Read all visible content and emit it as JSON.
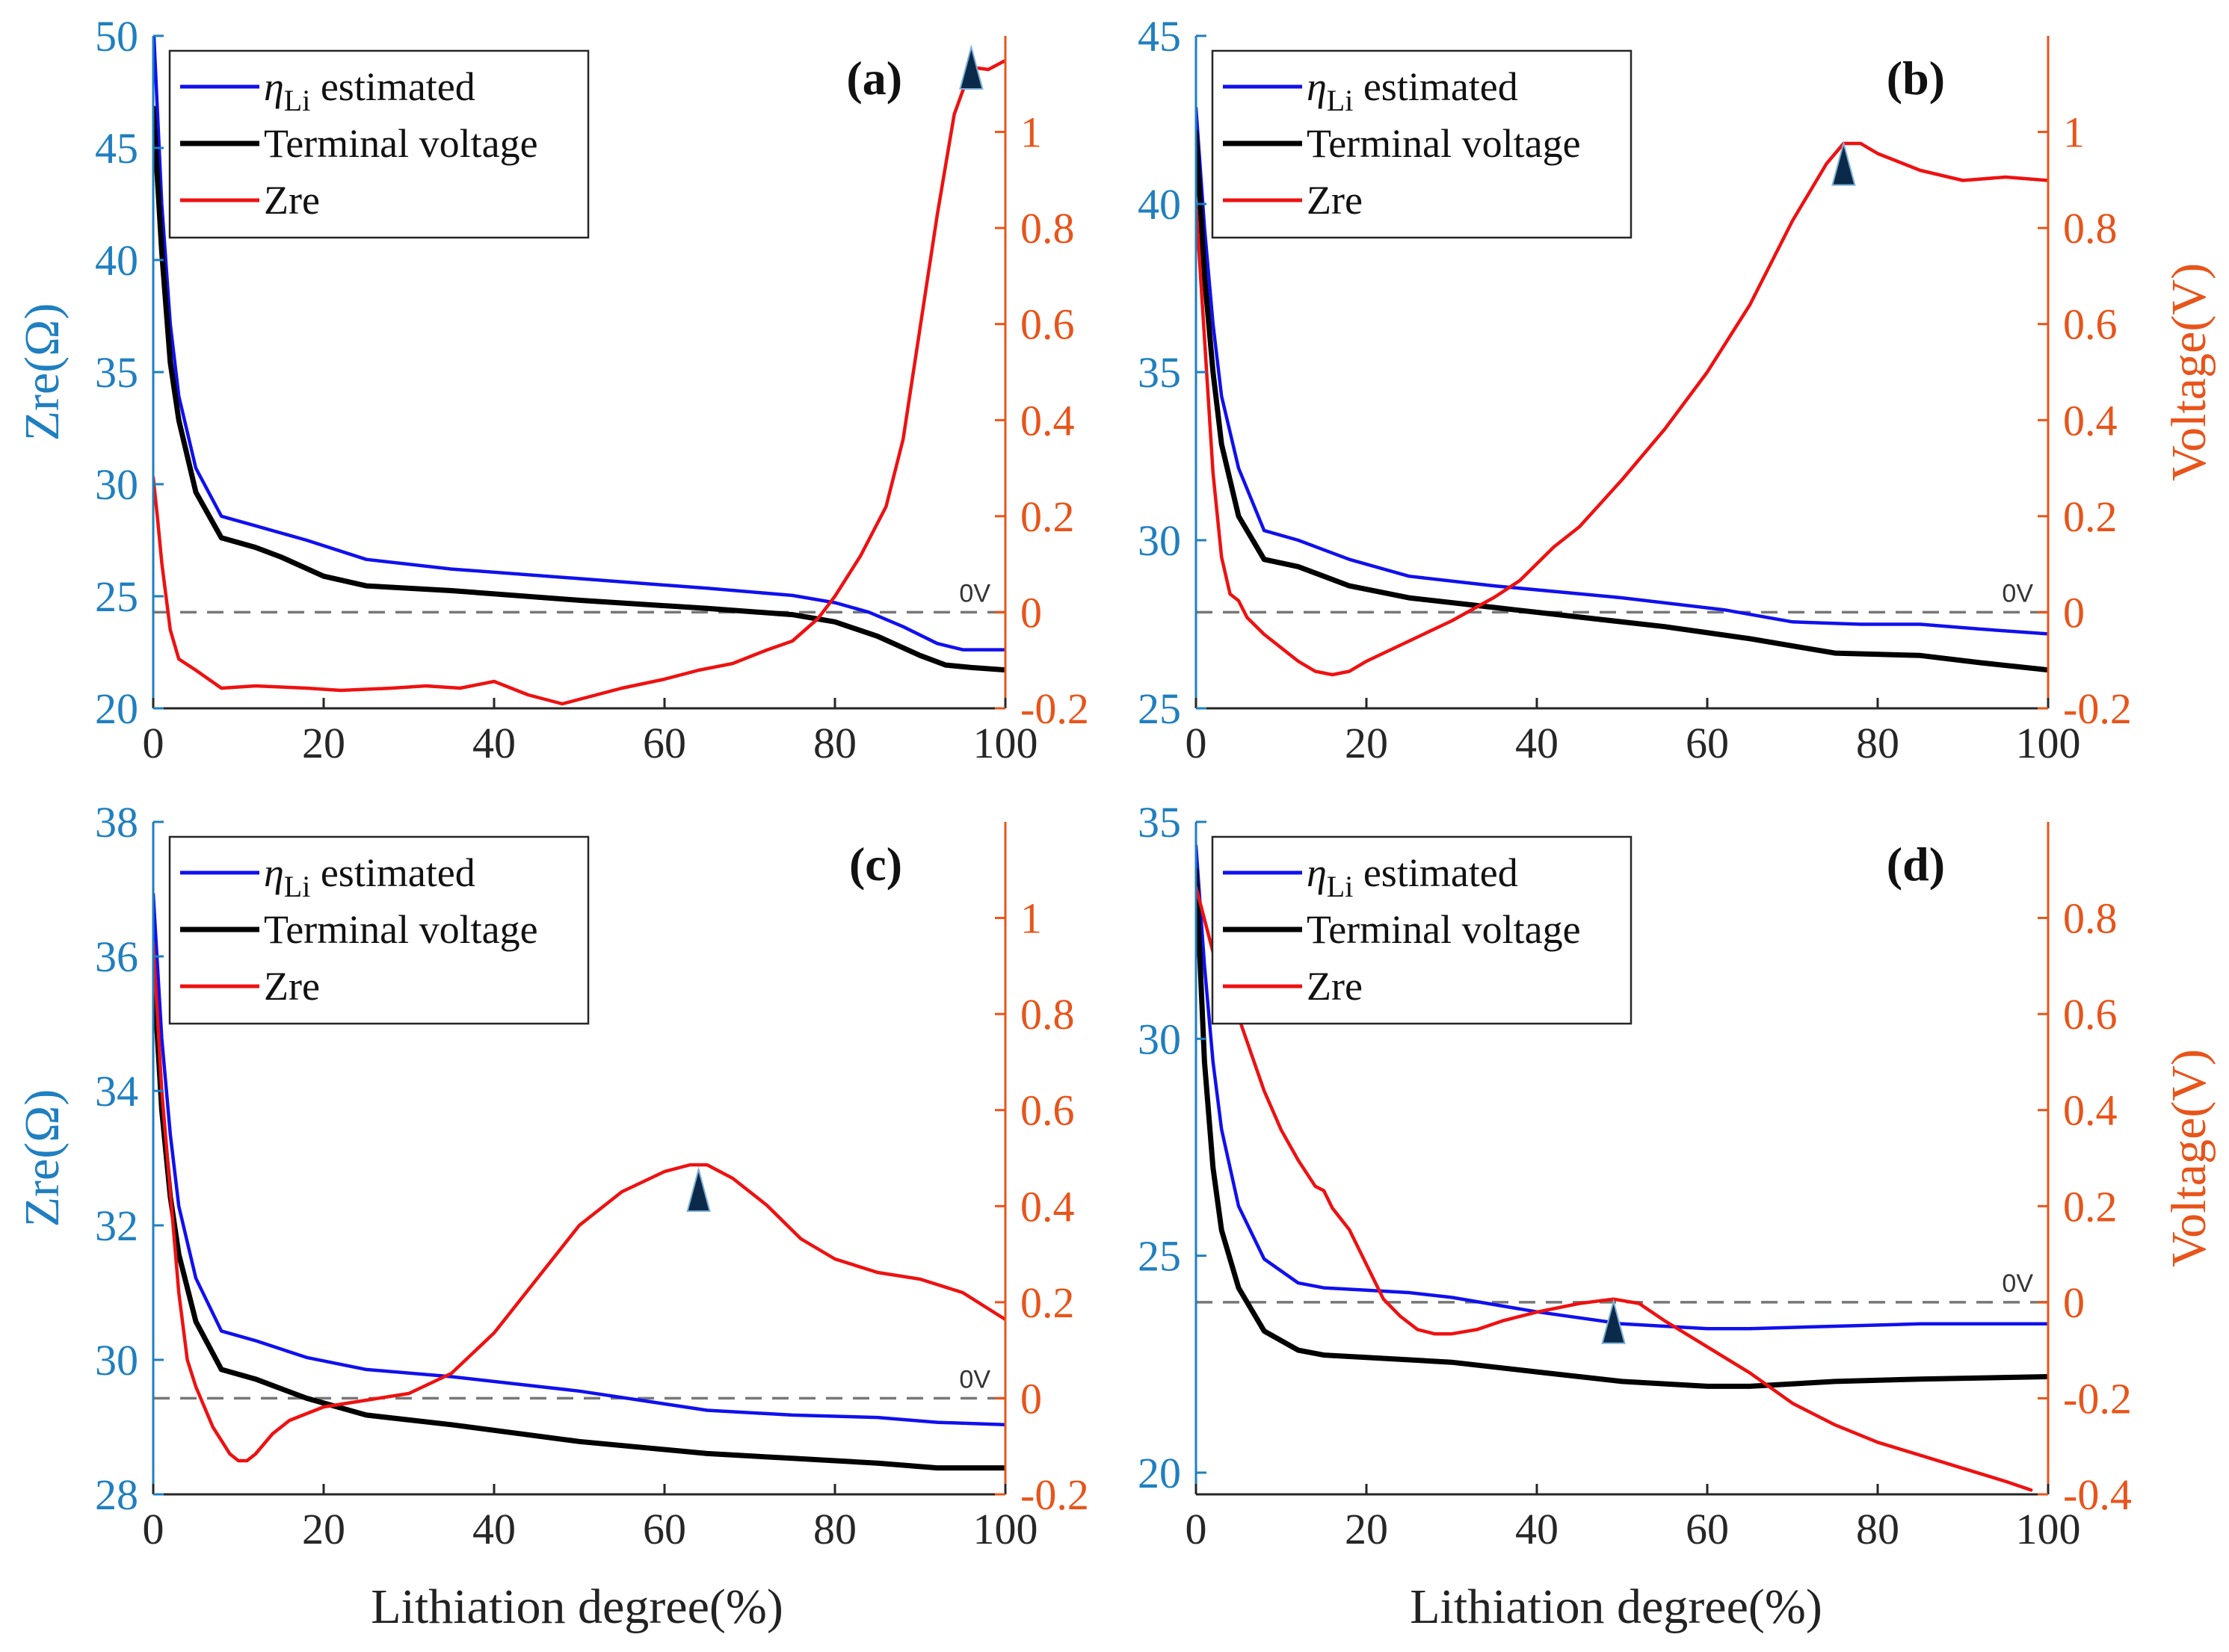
{
  "figure": {
    "shared_xlabel": "Lithiation degree(%)",
    "colors": {
      "eta": "#1010ee",
      "terminal": "#000000",
      "zre": "#ee1111",
      "left_axis": "#1f7fc0",
      "right_axis": "#e8541a",
      "zero_line": "#777777",
      "marker": "#0b2a4a"
    }
  },
  "chart_data": [
    {
      "type": "line",
      "panel_label": "(a)",
      "xlabel": "Lithiation degree(%)",
      "ylabel_left": "Zre(Ω)",
      "ylabel_right": "",
      "xlim": [
        0,
        100
      ],
      "xticks": [
        "0",
        "20",
        "40",
        "60",
        "80",
        "100"
      ],
      "ylim_left": [
        20,
        50
      ],
      "yticks_left": [
        "20",
        "25",
        "30",
        "35",
        "40",
        "45",
        "50"
      ],
      "ylim_right": [
        -0.2,
        1.2
      ],
      "yticks_right": [
        "-0.2",
        "0",
        "0.2",
        "0.4",
        "0.6",
        "0.8",
        "1"
      ],
      "zero_label": "0V",
      "legend": [
        "η_Li estimated",
        "Terminal voltage",
        "Zre"
      ],
      "legend_parts": {
        "eta_symbol": "η",
        "eta_sub": "Li",
        "eta_rest": " estimated",
        "terminal": "Terminal voltage",
        "zre": "Zre"
      },
      "marker": {
        "x": 96,
        "y": 1.13
      },
      "series": [
        {
          "name": "η_Li estimated",
          "axis": "right",
          "x": [
            0,
            1,
            2,
            3,
            5,
            8,
            12,
            18,
            25,
            35,
            50,
            65,
            75,
            80,
            84,
            88,
            92,
            95,
            100
          ],
          "y": [
            1.23,
            0.85,
            0.6,
            0.45,
            0.3,
            0.2,
            0.18,
            0.15,
            0.11,
            0.09,
            0.07,
            0.05,
            0.035,
            0.02,
            0.0,
            -0.03,
            -0.065,
            -0.078,
            -0.078
          ]
        },
        {
          "name": "Terminal voltage",
          "axis": "right",
          "x": [
            0,
            1,
            2,
            3,
            5,
            8,
            12,
            15,
            20,
            25,
            35,
            50,
            65,
            75,
            80,
            85,
            90,
            93,
            96,
            100
          ],
          "y": [
            1.05,
            0.75,
            0.52,
            0.4,
            0.25,
            0.155,
            0.135,
            0.115,
            0.075,
            0.055,
            0.045,
            0.025,
            0.008,
            -0.005,
            -0.02,
            -0.05,
            -0.09,
            -0.11,
            -0.115,
            -0.12
          ]
        },
        {
          "name": "Zre",
          "axis": "left",
          "x": [
            0,
            0.5,
            1,
            2,
            3,
            5,
            8,
            12,
            18,
            22,
            28,
            32,
            36,
            40,
            44,
            48,
            50,
            55,
            60,
            64,
            68,
            72,
            75,
            78,
            80,
            83,
            86,
            88,
            90,
            92,
            94,
            96,
            98,
            100
          ],
          "y": [
            30.3,
            28.5,
            26.5,
            23.5,
            22.2,
            21.7,
            20.9,
            21.0,
            20.9,
            20.8,
            20.9,
            21.0,
            20.9,
            21.2,
            20.6,
            20.2,
            20.4,
            20.9,
            21.3,
            21.7,
            22.0,
            22.6,
            23.0,
            24.0,
            25.0,
            26.8,
            29.0,
            32.0,
            37.0,
            42.0,
            46.5,
            48.6,
            48.5,
            48.9
          ]
        }
      ]
    },
    {
      "type": "line",
      "panel_label": "(b)",
      "xlabel": "Lithiation degree(%)",
      "ylabel_left": "",
      "ylabel_right": "Voltage(V)",
      "xlim": [
        0,
        100
      ],
      "xticks": [
        "0",
        "20",
        "40",
        "60",
        "80",
        "100"
      ],
      "ylim_left": [
        25,
        45
      ],
      "yticks_left": [
        "25",
        "30",
        "35",
        "40",
        "45"
      ],
      "ylim_right": [
        -0.2,
        1.2
      ],
      "yticks_right": [
        "-0.2",
        "0",
        "0.2",
        "0.4",
        "0.6",
        "0.8",
        "1"
      ],
      "zero_label": "0V",
      "legend": [
        "η_Li estimated",
        "Terminal voltage",
        "Zre"
      ],
      "legend_parts": {
        "eta_symbol": "η",
        "eta_sub": "Li",
        "eta_rest": " estimated",
        "terminal": "Terminal voltage",
        "zre": "Zre"
      },
      "marker": {
        "x": 76,
        "y": 0.93
      },
      "series": [
        {
          "name": "η_Li estimated",
          "axis": "right",
          "x": [
            0,
            1,
            2,
            3,
            5,
            8,
            12,
            18,
            25,
            35,
            50,
            62,
            70,
            78,
            85,
            92,
            100
          ],
          "y": [
            1.05,
            0.8,
            0.6,
            0.45,
            0.3,
            0.17,
            0.15,
            0.11,
            0.075,
            0.055,
            0.03,
            0.005,
            -0.02,
            -0.025,
            -0.025,
            -0.035,
            -0.045
          ]
        },
        {
          "name": "Terminal voltage",
          "axis": "right",
          "x": [
            0,
            1,
            2,
            3,
            5,
            8,
            12,
            18,
            25,
            35,
            45,
            55,
            65,
            75,
            85,
            92,
            100
          ],
          "y": [
            1.0,
            0.7,
            0.5,
            0.35,
            0.2,
            0.11,
            0.095,
            0.055,
            0.03,
            0.01,
            -0.01,
            -0.03,
            -0.055,
            -0.085,
            -0.09,
            -0.105,
            -0.12
          ]
        },
        {
          "name": "Zre",
          "axis": "left",
          "x": [
            0,
            1,
            2,
            3,
            4,
            5,
            6,
            8,
            10,
            12,
            14,
            16,
            18,
            20,
            25,
            30,
            35,
            38,
            42,
            45,
            50,
            55,
            60,
            65,
            70,
            74,
            76,
            78,
            80,
            85,
            90,
            95,
            100
          ],
          "y": [
            40.0,
            36.0,
            32.0,
            29.5,
            28.4,
            28.2,
            27.7,
            27.2,
            26.8,
            26.4,
            26.1,
            26.0,
            26.1,
            26.4,
            27.0,
            27.6,
            28.3,
            28.8,
            29.8,
            30.4,
            31.8,
            33.3,
            35.0,
            37.0,
            39.5,
            41.2,
            41.8,
            41.8,
            41.5,
            41.0,
            40.7,
            40.8,
            40.7
          ]
        }
      ]
    },
    {
      "type": "line",
      "panel_label": "(c)",
      "xlabel": "Lithiation degree(%)",
      "ylabel_left": "Zre(Ω)",
      "ylabel_right": "",
      "xlim": [
        0,
        100
      ],
      "xticks": [
        "0",
        "20",
        "40",
        "60",
        "80",
        "100"
      ],
      "ylim_left": [
        28,
        38
      ],
      "yticks_left": [
        "28",
        "30",
        "32",
        "34",
        "36",
        "38"
      ],
      "ylim_right": [
        -0.2,
        1.2
      ],
      "yticks_right": [
        "-0.2",
        "0",
        "0.2",
        "0.4",
        "0.6",
        "0.8",
        "1"
      ],
      "zero_label": "0V",
      "legend": [
        "η_Li estimated",
        "Terminal voltage",
        "Zre"
      ],
      "legend_parts": {
        "eta_symbol": "η",
        "eta_sub": "Li",
        "eta_rest": " estimated",
        "terminal": "Terminal voltage",
        "zre": "Zre"
      },
      "marker": {
        "x": 64,
        "y": 0.43
      },
      "series": [
        {
          "name": "η_Li estimated",
          "axis": "right",
          "x": [
            0,
            1,
            2,
            3,
            5,
            8,
            12,
            18,
            25,
            35,
            50,
            65,
            75,
            85,
            92,
            100
          ],
          "y": [
            1.05,
            0.75,
            0.55,
            0.4,
            0.25,
            0.14,
            0.12,
            0.085,
            0.06,
            0.045,
            0.015,
            -0.025,
            -0.035,
            -0.04,
            -0.05,
            -0.055
          ]
        },
        {
          "name": "Terminal voltage",
          "axis": "right",
          "x": [
            0,
            1,
            2,
            3,
            5,
            8,
            12,
            18,
            25,
            35,
            50,
            65,
            75,
            85,
            92,
            100
          ],
          "y": [
            0.9,
            0.6,
            0.42,
            0.3,
            0.16,
            0.06,
            0.04,
            0.0,
            -0.035,
            -0.055,
            -0.09,
            -0.115,
            -0.125,
            -0.135,
            -0.145,
            -0.145
          ]
        },
        {
          "name": "Zre",
          "axis": "left",
          "x": [
            0,
            1,
            2,
            3,
            4,
            5,
            6,
            7,
            8,
            9,
            10,
            11,
            12,
            14,
            16,
            18,
            20,
            25,
            30,
            35,
            40,
            45,
            50,
            55,
            60,
            63,
            65,
            68,
            72,
            76,
            80,
            85,
            90,
            95,
            100
          ],
          "y": [
            36.2,
            34.0,
            32.5,
            31.0,
            30.0,
            29.6,
            29.3,
            29.0,
            28.8,
            28.6,
            28.5,
            28.5,
            28.6,
            28.9,
            29.1,
            29.2,
            29.3,
            29.4,
            29.5,
            29.8,
            30.4,
            31.2,
            32.0,
            32.5,
            32.8,
            32.9,
            32.9,
            32.7,
            32.3,
            31.8,
            31.5,
            31.3,
            31.2,
            31.0,
            30.6
          ]
        }
      ]
    },
    {
      "type": "line",
      "panel_label": "(d)",
      "xlabel": "Lithiation degree(%)",
      "ylabel_left": "",
      "ylabel_right": "Voltage(V)",
      "xlim": [
        0,
        100
      ],
      "xticks": [
        "0",
        "20",
        "40",
        "60",
        "80",
        "100"
      ],
      "ylim_left": [
        19.5,
        35
      ],
      "yticks_left": [
        "20",
        "25",
        "30",
        "35"
      ],
      "ylim_right": [
        -0.4,
        1.0
      ],
      "yticks_right": [
        "-0.4",
        "-0.2",
        "0",
        "0.2",
        "0.4",
        "0.6",
        "0.8"
      ],
      "zero_label": "0V",
      "legend": [
        "η_Li estimated",
        "Terminal voltage",
        "Zre"
      ],
      "legend_parts": {
        "eta_symbol": "η",
        "eta_sub": "Li",
        "eta_rest": " estimated",
        "terminal": "Terminal voltage",
        "zre": "Zre"
      },
      "marker": {
        "x": 49,
        "y": -0.045
      },
      "series": [
        {
          "name": "η_Li estimated",
          "axis": "right",
          "x": [
            0,
            1,
            2,
            3,
            5,
            8,
            12,
            15,
            20,
            25,
            30,
            40,
            50,
            60,
            65,
            75,
            85,
            100
          ],
          "y": [
            0.95,
            0.7,
            0.5,
            0.36,
            0.2,
            0.09,
            0.04,
            0.03,
            0.025,
            0.02,
            0.01,
            -0.02,
            -0.045,
            -0.055,
            -0.055,
            -0.05,
            -0.045,
            -0.045
          ]
        },
        {
          "name": "Terminal voltage",
          "axis": "right",
          "x": [
            0,
            1,
            2,
            3,
            5,
            8,
            12,
            15,
            20,
            30,
            40,
            50,
            60,
            65,
            75,
            85,
            100
          ],
          "y": [
            0.9,
            0.5,
            0.28,
            0.15,
            0.03,
            -0.06,
            -0.1,
            -0.11,
            -0.115,
            -0.125,
            -0.145,
            -0.165,
            -0.175,
            -0.175,
            -0.165,
            -0.16,
            -0.155
          ]
        },
        {
          "name": "Zre",
          "axis": "left",
          "x": [
            0,
            2,
            5,
            8,
            10,
            12,
            14,
            15,
            16,
            18,
            20,
            22,
            24,
            26,
            28,
            30,
            33,
            36,
            40,
            45,
            49,
            52,
            55,
            60,
            65,
            70,
            75,
            80,
            85,
            90,
            95,
            98
          ],
          "y": [
            33.5,
            32.0,
            30.5,
            28.8,
            27.9,
            27.2,
            26.6,
            26.5,
            26.1,
            25.6,
            24.8,
            24.0,
            23.6,
            23.3,
            23.2,
            23.2,
            23.3,
            23.5,
            23.7,
            23.9,
            24.0,
            23.9,
            23.5,
            22.9,
            22.3,
            21.6,
            21.1,
            20.7,
            20.4,
            20.1,
            19.8,
            19.6
          ]
        }
      ]
    }
  ]
}
